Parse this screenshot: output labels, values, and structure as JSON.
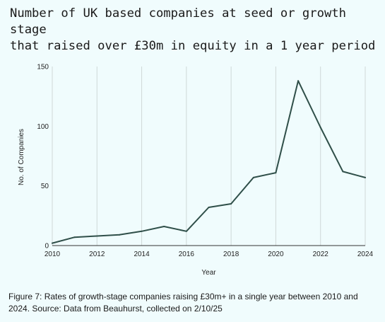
{
  "title": "Number of UK based companies at seed or growth stage\nthat raised over £30m in equity in a 1 year period",
  "caption": "Figure 7: Rates of growth-stage companies raising £30m+ in a single year between 2010 and 2024. Source: Data from Beauhurst, collected on 2/10/25",
  "chart_data": {
    "type": "line",
    "title": "Number of UK based companies at seed or growth stage that raised over £30m in equity in a 1 year period",
    "xlabel": "Year",
    "ylabel": "No. of Companies",
    "x": [
      2010,
      2011,
      2012,
      2013,
      2014,
      2015,
      2016,
      2017,
      2018,
      2019,
      2020,
      2021,
      2022,
      2023,
      2024
    ],
    "series": [
      {
        "values": [
          2,
          7,
          8,
          9,
          12,
          16,
          12,
          32,
          35,
          57,
          61,
          138,
          99,
          62,
          57
        ]
      }
    ],
    "xlim": [
      2010,
      2024
    ],
    "ylim": [
      0,
      150
    ],
    "xticks": [
      "2010",
      "2012",
      "2014",
      "2016",
      "2018",
      "2020",
      "2022",
      "2024"
    ],
    "yticks": [
      "0",
      "50",
      "100",
      "150"
    ],
    "grid": "vertical",
    "legend": "none",
    "line_color": "#2f4f49",
    "grid_color": "#cfd8d8"
  }
}
